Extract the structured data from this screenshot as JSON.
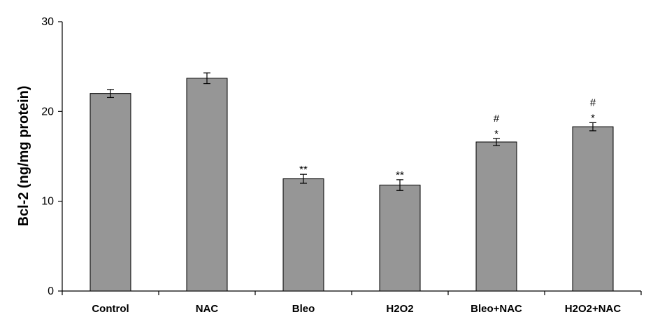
{
  "chart_data": {
    "type": "bar",
    "categories": [
      "Control",
      "NAC",
      "Bleo",
      "H2O2",
      "Bleo+NAC",
      "H2O2+NAC"
    ],
    "values": [
      22.0,
      23.7,
      12.5,
      11.8,
      16.6,
      18.3
    ],
    "errors": [
      0.45,
      0.6,
      0.5,
      0.6,
      0.4,
      0.45
    ],
    "annotations": [
      {
        "category": "Bleo",
        "marks": [
          "**"
        ]
      },
      {
        "category": "H2O2",
        "marks": [
          "**"
        ]
      },
      {
        "category": "Bleo+NAC",
        "marks": [
          "#",
          "*"
        ]
      },
      {
        "category": "H2O2+NAC",
        "marks": [
          "#",
          "*"
        ]
      }
    ],
    "title": "",
    "xlabel": "",
    "ylabel": "Bcl-2 (ng/mg protein)",
    "ylim": [
      0,
      30
    ],
    "yticks": [
      0,
      10,
      20,
      30
    ],
    "grid": false,
    "legend": "none",
    "bar_color": "#969696",
    "bar_edge_color": "#000000"
  }
}
